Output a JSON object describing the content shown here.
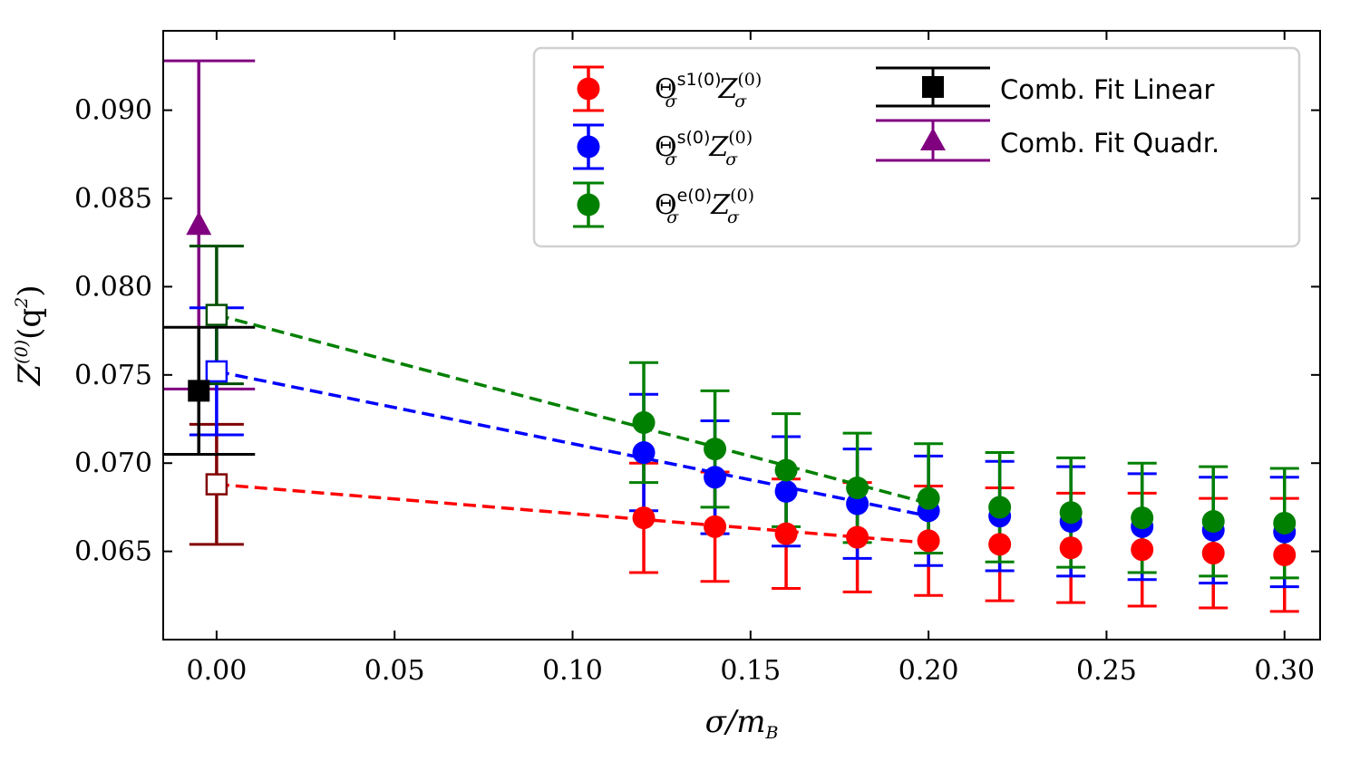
{
  "chart_data": {
    "type": "scatter",
    "xlabel": "σ/m",
    "xlabel_sub": "B",
    "ylabel": "Z",
    "ylabel_sup": "(0)",
    "ylabel_tail": "(q",
    "ylabel_tail_sup": "2",
    "ylabel_close": ")",
    "xlim": [
      -0.015,
      0.31
    ],
    "ylim": [
      0.06,
      0.0945
    ],
    "x_ticks": [
      "0.00",
      "0.05",
      "0.10",
      "0.15",
      "0.20",
      "0.25",
      "0.30"
    ],
    "x_tick_values": [
      0.0,
      0.05,
      0.1,
      0.15,
      0.2,
      0.25,
      0.3
    ],
    "y_ticks": [
      "0.065",
      "0.070",
      "0.075",
      "0.080",
      "0.085",
      "0.090"
    ],
    "y_tick_values": [
      0.065,
      0.07,
      0.075,
      0.08,
      0.085,
      0.09
    ],
    "grid": false,
    "legend_position": "top-right",
    "x": [
      0.12,
      0.14,
      0.16,
      0.18,
      0.2,
      0.22,
      0.24,
      0.26,
      0.28,
      0.3
    ],
    "series": [
      {
        "name": "s1",
        "legend_main": "Θ",
        "legend_sup": "s1(0)",
        "legend_sub": "σ",
        "legend_z": "Z",
        "legend_zsup": "(0)",
        "color": "#ff0000",
        "extrap_color": "#800000",
        "values": [
          0.0669,
          0.0664,
          0.066,
          0.0658,
          0.0656,
          0.0654,
          0.0652,
          0.0651,
          0.0649,
          0.0648
        ],
        "errors": [
          0.0031,
          0.0031,
          0.0031,
          0.0031,
          0.0031,
          0.0032,
          0.0031,
          0.0032,
          0.0031,
          0.0032
        ],
        "extrapolated": {
          "x": 0.0,
          "value": 0.0688,
          "error": 0.0034
        },
        "fit_x_end": 0.2
      },
      {
        "name": "s",
        "legend_main": "Θ",
        "legend_sup": "s(0)",
        "legend_sub": "σ",
        "legend_z": "Z",
        "legend_zsup": "(0)",
        "color": "#0000ff",
        "extrap_color": "#0000ff",
        "values": [
          0.0706,
          0.0692,
          0.0684,
          0.0677,
          0.0673,
          0.067,
          0.0667,
          0.0664,
          0.0662,
          0.0661
        ],
        "errors": [
          0.0033,
          0.0032,
          0.0031,
          0.0031,
          0.0031,
          0.0031,
          0.0031,
          0.003,
          0.003,
          0.0031
        ],
        "extrapolated": {
          "x": 0.0,
          "value": 0.0752,
          "error": 0.0036
        },
        "fit_x_end": 0.2
      },
      {
        "name": "e",
        "legend_main": "Θ",
        "legend_sup": "e(0)",
        "legend_sub": "σ",
        "legend_z": "Z",
        "legend_zsup": "(0)",
        "color": "#008000",
        "extrap_color": "#004d00",
        "values": [
          0.0723,
          0.0708,
          0.0696,
          0.0686,
          0.068,
          0.0675,
          0.0672,
          0.0669,
          0.0667,
          0.0666
        ],
        "errors": [
          0.0034,
          0.0033,
          0.0032,
          0.0031,
          0.0031,
          0.0031,
          0.0031,
          0.0031,
          0.0031,
          0.0031
        ],
        "extrapolated": {
          "x": 0.0,
          "value": 0.0784,
          "error": 0.0039
        },
        "fit_x_end": 0.2
      }
    ],
    "combined_fits": [
      {
        "name": "Comb. Fit Linear",
        "marker": "square",
        "color": "#000000",
        "x": -0.005,
        "value": 0.0741,
        "error": 0.0036
      },
      {
        "name": "Comb. Fit Quadr.",
        "marker": "triangle",
        "color": "#800080",
        "x": -0.005,
        "value": 0.0835,
        "error": 0.0093
      }
    ]
  }
}
